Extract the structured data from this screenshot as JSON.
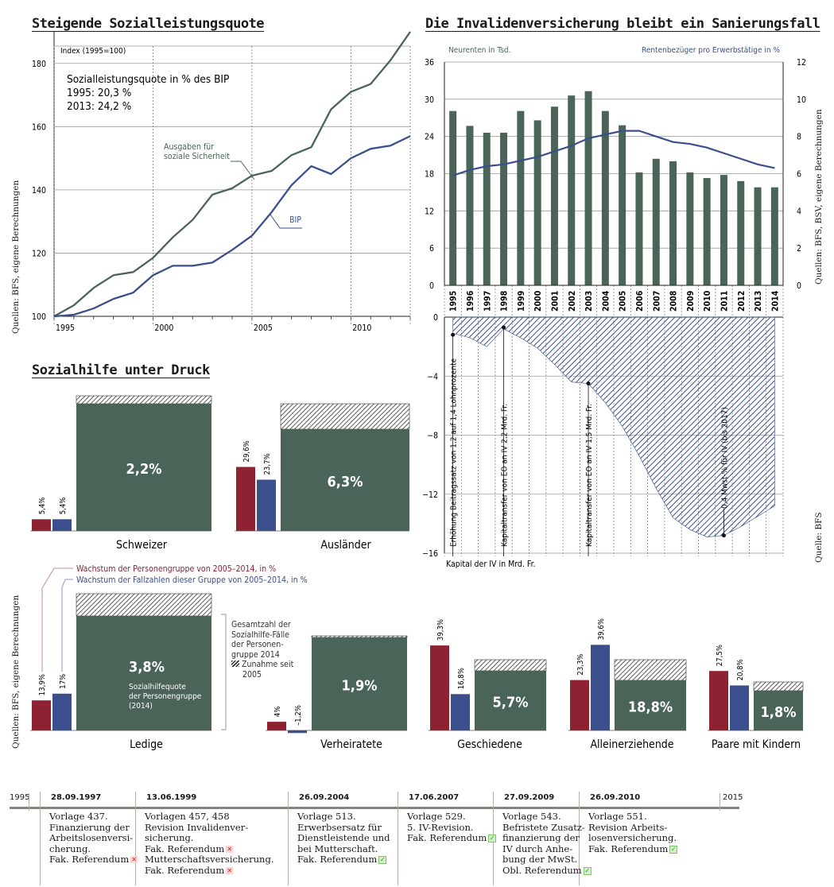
{
  "colors": {
    "green": "#4a6557",
    "blue": "#3b4f8c",
    "red": "#8e2232",
    "grid": "#9a9a9a"
  },
  "titles": {
    "left": "Steigende Sozialleistungsquote",
    "right": "Die Invalidenversicherung bleibt ein Sanierungsfall",
    "social": "Sozialhilfe unter Druck"
  },
  "chart_data": [
    {
      "id": "sozialleistungsquote",
      "type": "line",
      "title": "Steigende Sozialleistungsquote",
      "ylabel": "Index (1995=100)",
      "xticks": [
        "1995",
        "2000",
        "2005",
        "2010"
      ],
      "yticks": [
        100,
        120,
        140,
        160,
        180
      ],
      "ylim": [
        100,
        190
      ],
      "xlim": [
        1995,
        2013
      ],
      "annotation": {
        "line1": "Sozialleistungsquote in % des BIP",
        "line2": "1995: 20,3 %",
        "line3": "2013: 24,2 %"
      },
      "series": [
        {
          "name": "Ausgaben für soziale Sicherheit",
          "label_line1": "Ausgaben für",
          "label_line2": "soziale Sicherheit",
          "color": "#4a6557",
          "x": [
            1995,
            1996,
            1997,
            1998,
            1999,
            2000,
            2001,
            2002,
            2003,
            2004,
            2005,
            2006,
            2007,
            2008,
            2009,
            2010,
            2011,
            2012,
            2013
          ],
          "y": [
            100,
            103.5,
            109,
            113,
            114,
            118.5,
            125,
            130.5,
            138.5,
            140.5,
            144.5,
            146,
            151,
            153.5,
            165.5,
            171,
            173.5,
            181,
            190
          ]
        },
        {
          "name": "BIP",
          "label_line1": "BIP",
          "label_line2": "",
          "color": "#3b4f8c",
          "x": [
            1995,
            1996,
            1997,
            1998,
            1999,
            2000,
            2001,
            2002,
            2003,
            2004,
            2005,
            2006,
            2007,
            2008,
            2009,
            2010,
            2011,
            2012,
            2013
          ],
          "y": [
            100,
            100.5,
            102.5,
            105.5,
            107.5,
            113,
            116,
            116,
            117,
            121,
            125.5,
            133,
            141.5,
            147.5,
            145,
            150,
            153,
            154,
            157
          ]
        }
      ],
      "source": "Quellen: BFS, eigene Berechnungen"
    },
    {
      "id": "iv",
      "type": "bar",
      "title": "Die Invalidenversicherung bleibt ein Sanierungsfall",
      "left_axis_label": "Neurenten in Tsd.",
      "right_axis_label": "Rentenbezüger pro Erwerbstätige in %",
      "categories": [
        "1995",
        "1996",
        "1997",
        "1998",
        "1999",
        "2000",
        "2001",
        "2002",
        "2003",
        "2004",
        "2005",
        "2006",
        "2007",
        "2008",
        "2009",
        "2010",
        "2011",
        "2012",
        "2013",
        "2014"
      ],
      "ylim_left": [
        0,
        36
      ],
      "ylim_right": [
        0,
        12
      ],
      "yticks_left": [
        0,
        6,
        12,
        18,
        24,
        30,
        36
      ],
      "yticks_right": [
        0,
        2,
        4,
        6,
        8,
        10,
        12
      ],
      "series": [
        {
          "name": "Neurenten in Tsd.",
          "axis": "left",
          "type": "bar",
          "values": [
            28.1,
            25.7,
            24.6,
            24.6,
            28.1,
            26.6,
            28.8,
            30.6,
            31.3,
            28.1,
            25.8,
            18.2,
            20.4,
            20.0,
            18.2,
            17.3,
            17.8,
            16.8,
            15.8,
            15.8
          ]
        },
        {
          "name": "Rentenbezüger pro Erwerbstätige in %",
          "axis": "right",
          "type": "line",
          "values": [
            5.9,
            6.2,
            6.4,
            6.5,
            6.7,
            6.9,
            7.2,
            7.5,
            7.9,
            8.1,
            8.3,
            8.3,
            8.0,
            7.7,
            7.6,
            7.4,
            7.1,
            6.8,
            6.5,
            6.3
          ]
        }
      ],
      "source": "Quellen: BFS, BSV, eigene Berechnungen"
    },
    {
      "id": "iv-kapital",
      "type": "area",
      "xlabel": "Kapital der IV in Mrd. Fr.",
      "yticks": [
        0,
        -4,
        -8,
        -12,
        -16
      ],
      "ylim": [
        -16,
        0
      ],
      "x": [
        1995,
        1996,
        1997,
        1998,
        1999,
        2000,
        2001,
        2002,
        2003,
        2004,
        2005,
        2006,
        2007,
        2008,
        2009,
        2010,
        2011,
        2012,
        2013,
        2014
      ],
      "values": [
        -1.1,
        -1.4,
        -2.0,
        -0.8,
        -1.4,
        -2.1,
        -3.2,
        -4.4,
        -4.5,
        -5.8,
        -7.4,
        -9.4,
        -11.6,
        -13.6,
        -14.4,
        -14.9,
        -14.8,
        -14.2,
        -13.5,
        -12.8
      ],
      "annotations": [
        {
          "x": 1995,
          "y": -1.2,
          "text": "Erhöhung Beitragssatz von 1,2 auf 1,4 Lohnprozente"
        },
        {
          "x": 1998,
          "y": -0.7,
          "text": "Kapitaltransfer von EO an IV 2,2 Mrd. Fr."
        },
        {
          "x": 2003,
          "y": -4.5,
          "text": "Kapitaltransfer von EO an IV 1,5 Mrd. Fr."
        },
        {
          "x": 2011,
          "y": -14.8,
          "text": "0,4 Mwst-% für IV (bis 2017)"
        }
      ],
      "source": "Quelle: BFS"
    },
    {
      "id": "sozialhilfe",
      "type": "bar",
      "title": "Sozialhilfe unter Druck",
      "series": [
        {
          "name": "Wachstum der Personengruppe von 2005–2014, in %",
          "color": "#8e2232"
        },
        {
          "name": "Wachstum der Fallzahlen dieser Gruppe von 2005–2014, in %",
          "color": "#3b4f8c"
        }
      ],
      "legend": {
        "red": "Wachstum der Personengruppe von 2005–2014, in %",
        "blue": "Wachstum der Fallzahlen dieser Gruppe von 2005–2014, in %",
        "total_l1": "Gesamtzahl der",
        "total_l2": "Sozialhilfe-Fälle",
        "total_l3": "der Personen-",
        "total_l4": "gruppe 2014",
        "inc_l1": "Zunahme seit",
        "inc_l2": "2005",
        "quote_l1": "Sozialhilfequote",
        "quote_l2": "der Personengruppe",
        "quote_l3": "(2014)"
      },
      "groups": [
        {
          "name": "Schweizer",
          "red": 5.4,
          "blue": 5.4,
          "red_label": "5,4%",
          "blue_label": "5,4%",
          "quote": "2,2%",
          "quote_value": 2.2
        },
        {
          "name": "Ausländer",
          "red": 29.6,
          "blue": 23.7,
          "red_label": "29,6%",
          "blue_label": "23,7%",
          "quote": "6,3%",
          "quote_value": 6.3
        },
        {
          "name": "Ledige",
          "red": 13.9,
          "blue": 17,
          "red_label": "13,9%",
          "blue_label": "17%",
          "quote": "3,8%",
          "quote_value": 3.8
        },
        {
          "name": "Verheiratete",
          "red": 4,
          "blue": -1.2,
          "red_label": "4%",
          "blue_label": "–1,2%",
          "quote": "1,9%",
          "quote_value": 1.9
        },
        {
          "name": "Geschiedene",
          "red": 39.3,
          "blue": 16.8,
          "red_label": "39,3%",
          "blue_label": "16,8%",
          "quote": "5,7%",
          "quote_value": 5.7
        },
        {
          "name": "Alleinerziehende",
          "red": 23.3,
          "blue": 39.6,
          "red_label": "23,3%",
          "blue_label": "39,6%",
          "quote": "18,8%",
          "quote_value": 18.8
        },
        {
          "name": "Paare mit Kindern",
          "red": 27.5,
          "blue": 20.8,
          "red_label": "27,5%",
          "blue_label": "20,8%",
          "quote": "1,8%",
          "quote_value": 1.8
        }
      ],
      "source": "Quellen: BFS, eigene Berechnungen"
    }
  ],
  "timeline": {
    "start": "1995",
    "end": "2015",
    "events": [
      {
        "date": "28.09.1997",
        "lines": [
          "Vorlage 437.",
          "Finanzierung der",
          "Arbeitslosenversi-",
          "cherung.",
          "Fak. Referendum"
        ],
        "marks": [
          {
            "line": 4,
            "type": "rejected"
          }
        ]
      },
      {
        "date": "13.06.1999",
        "lines": [
          "Vorlagen 457, 458",
          "Revision Invalidenver-",
          "sicherung.",
          "Fak. Referendum",
          "Mutterschaftsversicherung.",
          "Fak. Referendum"
        ],
        "marks": [
          {
            "line": 3,
            "type": "rejected"
          },
          {
            "line": 5,
            "type": "rejected"
          }
        ]
      },
      {
        "date": "26.09.2004",
        "lines": [
          "Vorlage 513.",
          "Erwerbsersatz für",
          "Dienstleistende und",
          "bei Mutterschaft.",
          "Fak. Referendum"
        ],
        "marks": [
          {
            "line": 4,
            "type": "accepted"
          }
        ]
      },
      {
        "date": "17.06.2007",
        "lines": [
          "Vorlage 529.",
          "5. IV-Revision.",
          "Fak. Referendum"
        ],
        "marks": [
          {
            "line": 2,
            "type": "accepted"
          }
        ]
      },
      {
        "date": "27.09.2009",
        "lines": [
          "Vorlage 543.",
          "Befristete Zusatz-",
          "finanzierung der",
          "IV durch Anhe-",
          "bung der MwSt.",
          "Obl. Referendum"
        ],
        "marks": [
          {
            "line": 5,
            "type": "accepted"
          }
        ]
      },
      {
        "date": "26.09.2010",
        "lines": [
          "Vorlage 551.",
          "Revision Arbeits-",
          "losenversicherung.",
          "Fak. Referendum"
        ],
        "marks": [
          {
            "line": 3,
            "type": "accepted"
          }
        ]
      }
    ]
  }
}
